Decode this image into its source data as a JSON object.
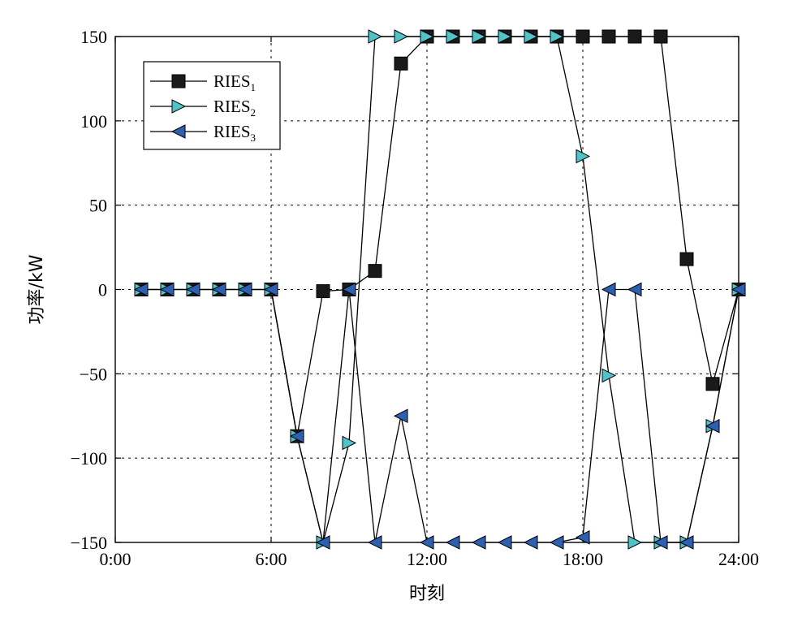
{
  "chart_data": {
    "type": "line",
    "xlabel": "时刻",
    "ylabel": "功率/kW",
    "xlim": [
      0,
      24
    ],
    "ylim": [
      -150,
      150
    ],
    "grid": true,
    "legend_position": "top-left",
    "x_tick_values": [
      0,
      6,
      12,
      18,
      24
    ],
    "x_tick_labels": [
      "0:00",
      "6:00",
      "12:00",
      "18:00",
      "24:00"
    ],
    "y_tick_values": [
      -150,
      -100,
      -50,
      0,
      50,
      100,
      150
    ],
    "y_tick_labels": [
      "−150",
      "−100",
      "−50",
      "0",
      "50",
      "100",
      "150"
    ],
    "x": [
      1,
      2,
      3,
      4,
      5,
      6,
      7,
      8,
      9,
      10,
      11,
      12,
      13,
      14,
      15,
      16,
      17,
      18,
      19,
      20,
      21,
      22,
      23,
      24
    ],
    "series": [
      {
        "name": "RIES",
        "subscript": "1",
        "marker": "square",
        "color": "#1a1a1a",
        "values": [
          0,
          0,
          0,
          0,
          0,
          0,
          -87,
          -1,
          0,
          11,
          134,
          150,
          150,
          150,
          150,
          150,
          150,
          150,
          150,
          150,
          150,
          18,
          -56,
          0
        ]
      },
      {
        "name": "RIES",
        "subscript": "2",
        "marker": "triangle-right",
        "color": "#4fc3c8",
        "values": [
          0,
          0,
          0,
          0,
          0,
          0,
          -87,
          -150,
          -91,
          150,
          150,
          150,
          150,
          150,
          150,
          150,
          150,
          79,
          -51,
          -150,
          -150,
          -150,
          -81,
          0
        ]
      },
      {
        "name": "RIES",
        "subscript": "3",
        "marker": "triangle-left",
        "color": "#2f5fb0",
        "values": [
          0,
          0,
          0,
          0,
          0,
          0,
          -87,
          -150,
          0,
          -150,
          -75,
          -150,
          -150,
          -150,
          -150,
          -150,
          -150,
          -147,
          0,
          0,
          -150,
          -150,
          -81,
          0
        ]
      }
    ]
  }
}
